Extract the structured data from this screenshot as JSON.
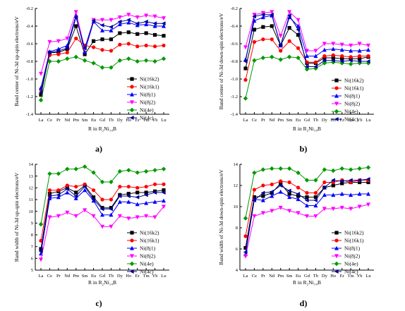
{
  "colors": {
    "Ni(16k2)": "#000000",
    "Ni(16k1)": "#ff0000",
    "Ni(8j1)": "#0000ff",
    "Ni(8j2)": "#ff00ff",
    "Ni(4e)": "#009900",
    "Ni(4c)": "#000099"
  },
  "markers": {
    "Ni(16k2)": "square",
    "Ni(16k1)": "circle",
    "Ni(8j1)": "triangle-up",
    "Ni(8j2)": "triangle-down",
    "Ni(4e)": "diamond",
    "Ni(4c)": "triangle-left"
  },
  "chart_data": [
    {
      "type": "line",
      "panel_label": "a)",
      "ylabel": "Band center of Ni-3d up-spin electrons/eV",
      "xlabel": "R in R₂Ni₁₄B",
      "categories": [
        "La",
        "Ce",
        "Pr",
        "Nd",
        "Pm",
        "Sm",
        "Eu",
        "Gd",
        "Tb",
        "Dy",
        "Ho",
        "Er",
        "Tm",
        "Yb",
        "Lu"
      ],
      "ylim": [
        -1.4,
        -0.2
      ],
      "yticks": [
        -1.4,
        -1.2,
        -1.0,
        -0.8,
        -0.6,
        -0.4,
        -0.2
      ],
      "ytick_labels": [
        "-1.4",
        "-1.2",
        "-1.0",
        "-0.8",
        "-0.6",
        "-0.4",
        "-0.2"
      ],
      "legend_position": "center-right",
      "series": [
        {
          "name": "Ni(16k2)",
          "values": [
            -1.18,
            -0.7,
            -0.7,
            -0.66,
            -0.4,
            -0.72,
            -0.57,
            -0.55,
            -0.55,
            -0.48,
            -0.47,
            -0.49,
            -0.48,
            -0.5,
            -0.51
          ]
        },
        {
          "name": "Ni(16k1)",
          "values": [
            -1.12,
            -0.73,
            -0.72,
            -0.7,
            -0.54,
            -0.62,
            -0.64,
            -0.67,
            -0.68,
            -0.61,
            -0.6,
            -0.63,
            -0.62,
            -0.63,
            -0.62
          ]
        },
        {
          "name": "Ni(8j1)",
          "values": [
            -1.1,
            -0.69,
            -0.66,
            -0.62,
            -0.28,
            -0.69,
            -0.35,
            -0.45,
            -0.45,
            -0.38,
            -0.36,
            -0.39,
            -0.38,
            -0.4,
            -0.4
          ]
        },
        {
          "name": "Ni(8j2)",
          "values": [
            -0.94,
            -0.58,
            -0.57,
            -0.54,
            -0.24,
            -0.66,
            -0.33,
            -0.33,
            -0.33,
            -0.3,
            -0.27,
            -0.3,
            -0.28,
            -0.29,
            -0.31
          ]
        },
        {
          "name": "Ni(4e)",
          "values": [
            -1.24,
            -0.8,
            -0.8,
            -0.77,
            -0.75,
            -0.79,
            -0.82,
            -0.87,
            -0.87,
            -0.79,
            -0.77,
            -0.8,
            -0.79,
            -0.8,
            -0.77
          ]
        },
        {
          "name": "Ni(4c)",
          "values": [
            -1.15,
            -0.7,
            -0.68,
            -0.65,
            -0.3,
            -0.65,
            -0.34,
            -0.39,
            -0.41,
            -0.35,
            -0.33,
            -0.37,
            -0.35,
            -0.37,
            -0.37
          ]
        }
      ]
    },
    {
      "type": "line",
      "panel_label": "b)",
      "ylabel": "Band center of Ni-3d down-spin electrons/eV",
      "xlabel": "R in R₂Ni₁₄B",
      "categories": [
        "La",
        "Ce",
        "Pr",
        "Nd",
        "Pm",
        "Sm",
        "Eu",
        "Gd",
        "Tb",
        "Dy",
        "Ho",
        "Er",
        "Tm",
        "Yb",
        "Lu"
      ],
      "ylim": [
        -1.4,
        -0.2
      ],
      "yticks": [
        -1.4,
        -1.2,
        -1.0,
        -0.8,
        -0.6,
        -0.4,
        -0.2
      ],
      "ytick_labels": [
        "-1.4",
        "-1.2",
        "-1.0",
        "-0.8",
        "-0.6",
        "-0.4",
        "-0.2"
      ],
      "legend_position": "bottom-right",
      "series": [
        {
          "name": "Ni(16k2)",
          "values": [
            -0.88,
            -0.44,
            -0.41,
            -0.4,
            -0.62,
            -0.42,
            -0.5,
            -0.82,
            -0.82,
            -0.76,
            -0.76,
            -0.77,
            -0.77,
            -0.77,
            -0.75
          ]
        },
        {
          "name": "Ni(16k1)",
          "values": [
            -1.01,
            -0.58,
            -0.55,
            -0.55,
            -0.68,
            -0.57,
            -0.65,
            -0.81,
            -0.81,
            -0.74,
            -0.73,
            -0.74,
            -0.75,
            -0.74,
            -0.74
          ]
        },
        {
          "name": "Ni(8j1)",
          "values": [
            -0.78,
            -0.34,
            -0.3,
            -0.28,
            -0.62,
            -0.3,
            -0.4,
            -0.74,
            -0.74,
            -0.67,
            -0.66,
            -0.67,
            -0.68,
            -0.68,
            -0.67
          ]
        },
        {
          "name": "Ni(8j2)",
          "values": [
            -0.64,
            -0.27,
            -0.25,
            -0.24,
            -0.51,
            -0.24,
            -0.33,
            -0.68,
            -0.68,
            -0.6,
            -0.6,
            -0.61,
            -0.62,
            -0.6,
            -0.62
          ]
        },
        {
          "name": "Ni(4e)",
          "values": [
            -1.22,
            -0.79,
            -0.76,
            -0.75,
            -0.78,
            -0.75,
            -0.76,
            -0.89,
            -0.88,
            -0.82,
            -0.81,
            -0.82,
            -0.83,
            -0.82,
            -0.82
          ]
        },
        {
          "name": "Ni(4c)",
          "values": [
            -0.8,
            -0.29,
            -0.27,
            -0.27,
            -0.62,
            -0.28,
            -0.44,
            -0.86,
            -0.86,
            -0.79,
            -0.79,
            -0.8,
            -0.79,
            -0.8,
            -0.8
          ]
        }
      ]
    },
    {
      "type": "line",
      "panel_label": "c)",
      "ylabel": "Band width of Ni-3d up-spin electrons/eV",
      "xlabel": "R in R₂Ni₁₄B",
      "categories": [
        "La",
        "Ce",
        "Pr",
        "Nd",
        "Pm",
        "Sm",
        "Eu",
        "Gd",
        "Tb",
        "Dy",
        "Ho",
        "Er",
        "Tm",
        "Yb",
        "Lu"
      ],
      "ylim": [
        5,
        14
      ],
      "yticks": [
        5,
        6,
        7,
        8,
        9,
        10,
        11,
        12,
        13,
        14
      ],
      "ytick_labels": [
        "5",
        "6",
        "7",
        "8",
        "9",
        "10",
        "11",
        "12",
        "13",
        "14"
      ],
      "legend_position": "bottom-right",
      "series": [
        {
          "name": "Ni(16k2)",
          "values": [
            6.8,
            11.5,
            11.7,
            12.0,
            11.6,
            12.2,
            11.2,
            10.3,
            10.3,
            11.4,
            11.5,
            11.6,
            11.6,
            11.7,
            11.8
          ]
        },
        {
          "name": "Ni(16k1)",
          "values": [
            7.5,
            11.8,
            11.8,
            12.2,
            12.1,
            12.3,
            11.8,
            11.0,
            11.0,
            12.1,
            12.1,
            12.0,
            12.1,
            12.3,
            12.3
          ]
        },
        {
          "name": "Ni(8j1)",
          "values": [
            6.4,
            11.1,
            11.2,
            11.6,
            11.1,
            11.8,
            10.9,
            9.7,
            9.7,
            10.8,
            10.8,
            10.6,
            10.7,
            10.8,
            10.9
          ]
        },
        {
          "name": "Ni(8j2)",
          "values": [
            5.9,
            9.5,
            9.6,
            9.9,
            9.6,
            10.1,
            9.6,
            8.7,
            8.7,
            9.6,
            9.4,
            9.5,
            9.6,
            9.5,
            10.4
          ]
        },
        {
          "name": "Ni(4e)",
          "values": [
            8.9,
            13.2,
            13.2,
            13.6,
            13.6,
            13.8,
            13.3,
            12.5,
            12.5,
            13.4,
            13.5,
            13.3,
            13.4,
            13.5,
            13.6
          ]
        },
        {
          "name": "Ni(4c)",
          "values": [
            6.6,
            11.3,
            11.4,
            11.9,
            11.3,
            12.1,
            11.0,
            10.2,
            10.2,
            11.3,
            11.3,
            11.2,
            11.4,
            11.6,
            11.6
          ]
        }
      ]
    },
    {
      "type": "line",
      "panel_label": "d)",
      "ylabel": "Band width of Ni-3d down-spin electrons/eV",
      "xlabel": "R in R₂Ni₁₄B",
      "categories": [
        "La",
        "Ce",
        "Pr",
        "Nd",
        "Pm",
        "Sm",
        "Eu",
        "Gd",
        "Tb",
        "Dy",
        "Ho",
        "Er",
        "Tm",
        "Yb",
        "Lu"
      ],
      "ylim": [
        4,
        14
      ],
      "yticks": [
        4,
        6,
        8,
        10,
        12,
        14
      ],
      "ytick_labels": [
        "4",
        "6",
        "8",
        "10",
        "12",
        "14"
      ],
      "legend_position": "bottom-right",
      "series": [
        {
          "name": "Ni(16k2)",
          "values": [
            6.1,
            10.9,
            11.0,
            11.3,
            12.2,
            11.2,
            11.0,
            10.9,
            10.9,
            11.8,
            12.0,
            12.2,
            12.3,
            12.3,
            12.3
          ]
        },
        {
          "name": "Ni(16k1)",
          "values": [
            7.2,
            11.6,
            12.0,
            12.1,
            12.4,
            12.3,
            11.8,
            11.3,
            11.3,
            12.3,
            12.3,
            12.5,
            12.3,
            12.5,
            12.5
          ]
        },
        {
          "name": "Ni(8j1)",
          "values": [
            5.5,
            10.7,
            10.6,
            11.0,
            11.4,
            10.9,
            10.7,
            10.1,
            10.1,
            11.1,
            11.1,
            11.2,
            11.1,
            11.2,
            11.2
          ]
        },
        {
          "name": "Ni(8j2)",
          "values": [
            5.3,
            9.1,
            9.4,
            9.6,
            9.9,
            9.6,
            9.4,
            9.1,
            9.1,
            9.8,
            9.8,
            9.9,
            9.8,
            10.0,
            10.2
          ]
        },
        {
          "name": "Ni(4e)",
          "values": [
            8.9,
            13.2,
            13.5,
            13.6,
            13.6,
            13.6,
            13.2,
            12.5,
            12.5,
            13.5,
            13.4,
            13.6,
            13.5,
            13.6,
            13.7
          ]
        },
        {
          "name": "Ni(4c)",
          "values": [
            5.7,
            10.6,
            11.3,
            11.4,
            12.0,
            11.5,
            11.2,
            10.6,
            10.6,
            11.8,
            12.5,
            12.4,
            12.5,
            12.5,
            12.6
          ]
        }
      ]
    }
  ]
}
